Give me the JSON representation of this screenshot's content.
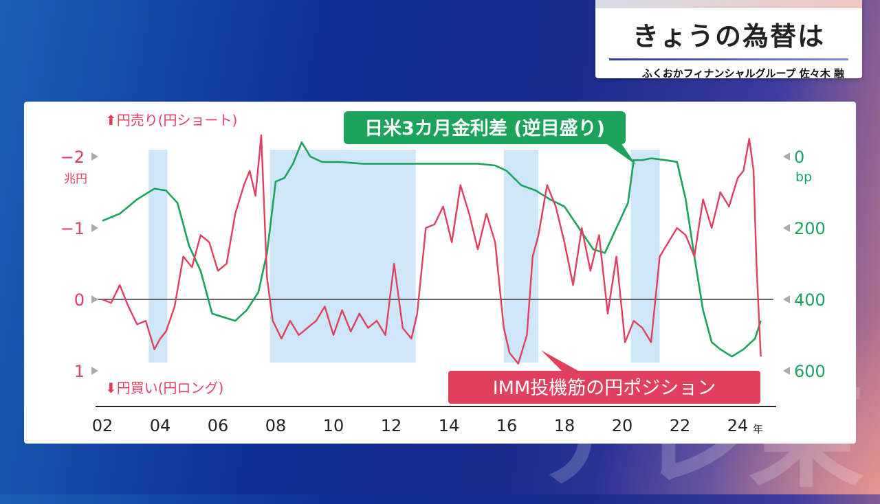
{
  "header": {
    "title": "きょうの為替は",
    "subtitle": "ふくおかフィナンシャルグループ 佐々木 融"
  },
  "watermark": "テレ東",
  "colors": {
    "position": "#e0405e",
    "rate": "#1ba35c",
    "shade": "#cfe6f8"
  },
  "chart_data": {
    "type": "line",
    "x_ticks": [
      "02",
      "04",
      "06",
      "08",
      "10",
      "12",
      "14",
      "16",
      "18",
      "20",
      "22",
      "24"
    ],
    "x_unit": "年",
    "xlim": [
      2002,
      2025
    ],
    "left_axis": {
      "ticks": [
        "−2",
        "−1",
        "0",
        "1"
      ],
      "unit": "兆円",
      "top_label": "⬆円売り(円ショート)",
      "bottom_label": "⬇円買い(円ロング)",
      "ylim": [
        -2,
        1
      ]
    },
    "right_axis": {
      "ticks": [
        "0",
        "200",
        "400",
        "600"
      ],
      "unit": "bp",
      "ylim": [
        0,
        600
      ]
    },
    "shaded_periods": [
      [
        2003.6,
        2004.25
      ],
      [
        2007.8,
        2012.85
      ],
      [
        2015.9,
        2017.1
      ],
      [
        2020.3,
        2021.3
      ]
    ],
    "series": [
      {
        "name": "IMM投機筋の円ポジション",
        "axis": "left",
        "x": [
          2002,
          2002.3,
          2002.6,
          2002.9,
          2003.2,
          2003.5,
          2003.8,
          2004.0,
          2004.2,
          2004.5,
          2004.8,
          2005.1,
          2005.4,
          2005.7,
          2006.0,
          2006.3,
          2006.6,
          2006.9,
          2007.1,
          2007.3,
          2007.5,
          2007.7,
          2007.9,
          2008.2,
          2008.5,
          2008.8,
          2009.1,
          2009.4,
          2009.7,
          2010.0,
          2010.3,
          2010.6,
          2010.9,
          2011.2,
          2011.5,
          2011.8,
          2012.1,
          2012.4,
          2012.7,
          2012.9,
          2013.2,
          2013.5,
          2013.8,
          2014.1,
          2014.4,
          2014.7,
          2015.0,
          2015.3,
          2015.6,
          2015.9,
          2016.1,
          2016.4,
          2016.7,
          2016.9,
          2017.1,
          2017.4,
          2017.7,
          2018.0,
          2018.3,
          2018.6,
          2018.9,
          2019.2,
          2019.5,
          2019.8,
          2020.1,
          2020.4,
          2020.7,
          2021.0,
          2021.3,
          2021.6,
          2021.9,
          2022.2,
          2022.5,
          2022.8,
          2023.1,
          2023.4,
          2023.7,
          2024.0,
          2024.2,
          2024.4,
          2024.55,
          2024.65,
          2024.8
        ],
        "values": [
          0.0,
          0.05,
          -0.2,
          0.1,
          0.35,
          0.3,
          0.7,
          0.55,
          0.45,
          0.1,
          -0.6,
          -0.45,
          -0.9,
          -0.8,
          -0.4,
          -0.5,
          -1.2,
          -1.6,
          -1.8,
          -1.45,
          -2.3,
          -0.3,
          0.3,
          0.55,
          0.3,
          0.5,
          0.4,
          0.3,
          0.1,
          0.5,
          0.15,
          0.45,
          0.2,
          0.4,
          0.3,
          0.5,
          -0.5,
          0.4,
          0.55,
          0.2,
          -1.0,
          -1.05,
          -1.3,
          -0.8,
          -1.6,
          -1.2,
          -0.7,
          -1.2,
          -0.8,
          0.4,
          0.75,
          0.9,
          0.5,
          -0.6,
          -0.9,
          -1.6,
          -1.3,
          -0.8,
          -0.2,
          -1.0,
          -0.4,
          -0.9,
          0.2,
          -0.6,
          0.6,
          0.3,
          0.4,
          0.6,
          -0.6,
          -0.8,
          -1.0,
          -0.9,
          -0.6,
          -1.4,
          -1.0,
          -1.5,
          -1.3,
          -1.7,
          -1.8,
          -2.25,
          -1.8,
          -0.5,
          0.8
        ]
      },
      {
        "name": "日米3カ月金利差 (逆目盛り)",
        "axis": "right",
        "x": [
          2002,
          2002.6,
          2003.2,
          2003.8,
          2004.2,
          2004.6,
          2005.0,
          2005.4,
          2005.8,
          2006.2,
          2006.6,
          2007.0,
          2007.4,
          2007.7,
          2008.0,
          2008.3,
          2008.6,
          2008.9,
          2009.2,
          2009.6,
          2010.2,
          2011.0,
          2012.0,
          2013.0,
          2014.0,
          2015.0,
          2015.6,
          2016.0,
          2016.5,
          2017.0,
          2017.5,
          2018.0,
          2018.5,
          2019.0,
          2019.4,
          2019.8,
          2020.2,
          2020.4,
          2020.7,
          2021.0,
          2021.5,
          2021.9,
          2022.2,
          2022.5,
          2022.8,
          2023.1,
          2023.4,
          2023.8,
          2024.2,
          2024.6,
          2024.8
        ],
        "values": [
          180,
          160,
          120,
          90,
          95,
          130,
          250,
          320,
          440,
          450,
          460,
          430,
          380,
          270,
          70,
          60,
          20,
          -40,
          0,
          15,
          15,
          20,
          20,
          20,
          20,
          20,
          25,
          40,
          80,
          95,
          120,
          140,
          200,
          260,
          270,
          200,
          130,
          10,
          10,
          5,
          10,
          15,
          120,
          280,
          430,
          520,
          540,
          560,
          540,
          510,
          460
        ]
      }
    ]
  }
}
